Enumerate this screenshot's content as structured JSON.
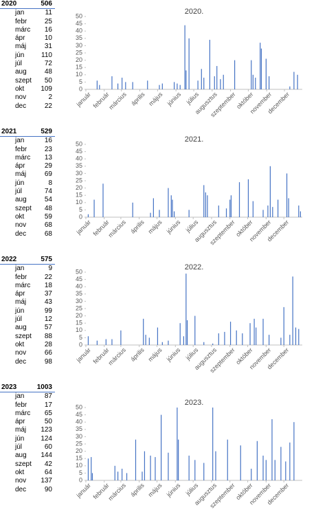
{
  "tables": [
    {
      "year": "2020",
      "total": 506,
      "rows": [
        [
          "jan",
          11
        ],
        [
          "febr",
          25
        ],
        [
          "márc",
          16
        ],
        [
          "ápr",
          10
        ],
        [
          "máj",
          31
        ],
        [
          "jún",
          110
        ],
        [
          "júl",
          72
        ],
        [
          "aug",
          48
        ],
        [
          "szept",
          50
        ],
        [
          "okt",
          109
        ],
        [
          "nov",
          2
        ],
        [
          "dec",
          22
        ]
      ]
    },
    {
      "year": "2021",
      "total": 529,
      "rows": [
        [
          "jan",
          16
        ],
        [
          "febr",
          23
        ],
        [
          "márc",
          13
        ],
        [
          "ápr",
          29
        ],
        [
          "máj",
          69
        ],
        [
          "jún",
          8
        ],
        [
          "júl",
          74
        ],
        [
          "aug",
          54
        ],
        [
          "szept",
          48
        ],
        [
          "okt",
          59
        ],
        [
          "nov",
          68
        ],
        [
          "dec",
          68
        ]
      ]
    },
    {
      "year": "2022",
      "total": 575,
      "rows": [
        [
          "jan",
          9
        ],
        [
          "febr",
          22
        ],
        [
          "márc",
          18
        ],
        [
          "ápr",
          37
        ],
        [
          "máj",
          43
        ],
        [
          "jún",
          99
        ],
        [
          "júl",
          12
        ],
        [
          "aug",
          57
        ],
        [
          "szept",
          88
        ],
        [
          "okt",
          28
        ],
        [
          "nov",
          66
        ],
        [
          "dec",
          98
        ]
      ]
    },
    {
      "year": "2023",
      "total": 1003,
      "rows": [
        [
          "jan",
          87
        ],
        [
          "febr",
          17
        ],
        [
          "márc",
          65
        ],
        [
          "ápr",
          50
        ],
        [
          "máj",
          123
        ],
        [
          "jún",
          124
        ],
        [
          "júl",
          60
        ],
        [
          "aug",
          144
        ],
        [
          "szept",
          42
        ],
        [
          "okt",
          64
        ],
        [
          "nov",
          137
        ],
        [
          "dec",
          90
        ]
      ]
    }
  ],
  "chart_data": [
    {
      "type": "bar",
      "title": "2020.",
      "color": "#4472c4",
      "xlim": [
        1,
        366
      ],
      "ylim": [
        0,
        50
      ],
      "yticks": [
        0,
        5,
        10,
        15,
        20,
        25,
        30,
        35,
        40,
        45,
        50
      ],
      "xticks": [
        {
          "value": 1,
          "label": "január"
        },
        {
          "value": 32,
          "label": "február"
        },
        {
          "value": 61,
          "label": "március"
        },
        {
          "value": 92,
          "label": "április"
        },
        {
          "value": 122,
          "label": "május"
        },
        {
          "value": 153,
          "label": "június"
        },
        {
          "value": 183,
          "label": "július"
        },
        {
          "value": 214,
          "label": "augusztus"
        },
        {
          "value": 245,
          "label": "szeptember"
        },
        {
          "value": 275,
          "label": "október"
        },
        {
          "value": 306,
          "label": "november"
        },
        {
          "value": 336,
          "label": "december"
        }
      ],
      "x": [
        20,
        24,
        45,
        55,
        62,
        68,
        80,
        105,
        125,
        130,
        150,
        155,
        160,
        168,
        170,
        175,
        190,
        196,
        200,
        210,
        218,
        222,
        228,
        233,
        252,
        280,
        283,
        287,
        295,
        297,
        305,
        310,
        345,
        352,
        358
      ],
      "values": [
        6,
        3,
        9,
        4,
        8,
        5,
        5,
        6,
        3,
        4,
        5,
        4,
        3,
        44,
        13,
        35,
        6,
        14,
        8,
        34,
        9,
        16,
        7,
        10,
        20,
        20,
        10,
        8,
        32,
        28,
        21,
        9,
        2,
        12,
        10
      ]
    },
    {
      "type": "bar",
      "title": "2021.",
      "color": "#4472c4",
      "xlim": [
        1,
        366
      ],
      "ylim": [
        0,
        50
      ],
      "yticks": [
        0,
        5,
        10,
        15,
        20,
        25,
        30,
        35,
        40,
        45,
        50
      ],
      "xticks": [
        {
          "value": 1,
          "label": "január"
        },
        {
          "value": 32,
          "label": "február"
        },
        {
          "value": 60,
          "label": "március"
        },
        {
          "value": 91,
          "label": "április"
        },
        {
          "value": 121,
          "label": "május"
        },
        {
          "value": 152,
          "label": "június"
        },
        {
          "value": 182,
          "label": "július"
        },
        {
          "value": 213,
          "label": "augusztus"
        },
        {
          "value": 244,
          "label": "szeptember"
        },
        {
          "value": 274,
          "label": "október"
        },
        {
          "value": 305,
          "label": "november"
        },
        {
          "value": 335,
          "label": "december"
        }
      ],
      "x": [
        5,
        15,
        30,
        80,
        110,
        115,
        125,
        140,
        145,
        147,
        150,
        175,
        200,
        203,
        206,
        225,
        238,
        244,
        246,
        260,
        275,
        283,
        300,
        308,
        312,
        316,
        325,
        340,
        343,
        360,
        363
      ],
      "values": [
        2,
        12,
        23,
        10,
        3,
        13,
        5,
        20,
        15,
        12,
        4,
        5,
        22,
        17,
        15,
        8,
        6,
        12,
        15,
        24,
        26,
        11,
        5,
        8,
        35,
        7,
        12,
        30,
        13,
        8,
        4
      ]
    },
    {
      "type": "bar",
      "title": "2022.",
      "color": "#4472c4",
      "xlim": [
        1,
        366
      ],
      "ylim": [
        0,
        50
      ],
      "yticks": [
        0,
        5,
        10,
        15,
        20,
        25,
        30,
        35,
        40,
        45,
        50
      ],
      "xticks": [
        {
          "value": 1,
          "label": "január"
        },
        {
          "value": 32,
          "label": "február"
        },
        {
          "value": 60,
          "label": "március"
        },
        {
          "value": 91,
          "label": "április"
        },
        {
          "value": 121,
          "label": "május"
        },
        {
          "value": 152,
          "label": "június"
        },
        {
          "value": 182,
          "label": "július"
        },
        {
          "value": 213,
          "label": "augusztus"
        },
        {
          "value": 244,
          "label": "szeptember"
        },
        {
          "value": 274,
          "label": "október"
        },
        {
          "value": 305,
          "label": "november"
        },
        {
          "value": 335,
          "label": "december"
        }
      ],
      "x": [
        5,
        20,
        35,
        45,
        60,
        98,
        102,
        108,
        122,
        130,
        140,
        160,
        166,
        170,
        172,
        185,
        200,
        215,
        225,
        235,
        245,
        255,
        265,
        278,
        285,
        288,
        300,
        310,
        330,
        335,
        345,
        350,
        355,
        360
      ],
      "values": [
        6,
        3,
        4,
        4,
        10,
        18,
        7,
        5,
        12,
        2,
        3,
        15,
        6,
        49,
        17,
        20,
        2,
        1,
        8,
        9,
        16,
        10,
        8,
        15,
        18,
        12,
        18,
        7,
        5,
        26,
        7,
        47,
        12,
        11
      ]
    },
    {
      "type": "bar",
      "title": "2023.",
      "color": "#4472c4",
      "xlim": [
        1,
        366
      ],
      "ylim": [
        0,
        50
      ],
      "yticks": [
        0,
        5,
        10,
        15,
        20,
        25,
        30,
        35,
        40,
        45,
        50
      ],
      "xticks": [
        {
          "value": 1,
          "label": "január"
        },
        {
          "value": 32,
          "label": "február"
        },
        {
          "value": 60,
          "label": "március"
        },
        {
          "value": 91,
          "label": "április"
        },
        {
          "value": 121,
          "label": "május"
        },
        {
          "value": 152,
          "label": "június"
        },
        {
          "value": 182,
          "label": "július"
        },
        {
          "value": 213,
          "label": "augusztus"
        },
        {
          "value": 244,
          "label": "szeptember"
        },
        {
          "value": 274,
          "label": "október"
        },
        {
          "value": 305,
          "label": "november"
        },
        {
          "value": 335,
          "label": "december"
        }
      ],
      "x": [
        5,
        10,
        12,
        50,
        55,
        62,
        70,
        85,
        96,
        100,
        110,
        118,
        128,
        140,
        155,
        157,
        175,
        185,
        200,
        215,
        220,
        240,
        262,
        280,
        290,
        300,
        305,
        315,
        320,
        330,
        338,
        345,
        352
      ],
      "values": [
        15,
        16,
        5,
        10,
        6,
        8,
        5,
        28,
        6,
        20,
        17,
        16,
        45,
        19,
        50,
        28,
        17,
        14,
        12,
        50,
        20,
        28,
        24,
        8,
        27,
        17,
        14,
        42,
        14,
        23,
        13,
        26,
        40
      ]
    }
  ]
}
